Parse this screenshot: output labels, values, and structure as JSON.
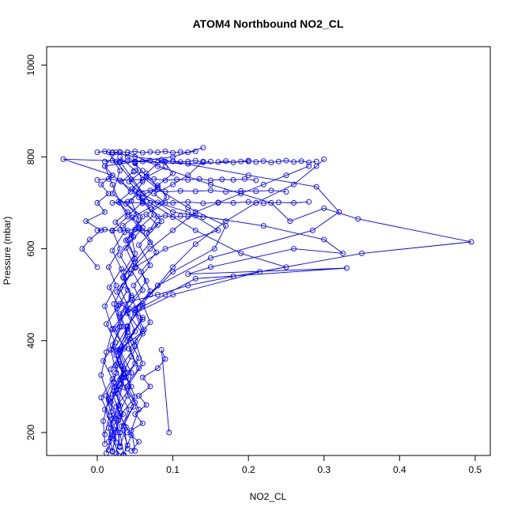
{
  "chart_data": {
    "type": "line",
    "title": "ATOM4 Northbound NO2_CL",
    "xlabel": "NO2_CL",
    "ylabel": "Pressure (mbar)",
    "xlim": [
      -0.067,
      0.52
    ],
    "ylim": [
      1040,
      150
    ],
    "y_reversed": true,
    "x_ticks": [
      0.0,
      0.1,
      0.2,
      0.3,
      0.4,
      0.5
    ],
    "x_tick_labels": [
      "0.0",
      "0.1",
      "0.2",
      "0.3",
      "0.4",
      "0.5"
    ],
    "y_ticks": [
      200,
      400,
      600,
      800,
      1000
    ],
    "y_tick_labels": [
      "200",
      "400",
      "600",
      "800",
      "1000"
    ],
    "grid": false,
    "marker": "open-circle",
    "color": "#0000ff",
    "series": [
      {
        "profile": 1,
        "x": [
          0.012,
          0.018,
          0.025,
          0.015,
          0.022,
          0.028,
          0.02,
          0.032,
          0.026,
          0.04,
          0.035,
          0.05,
          0.045,
          0.06,
          0.02,
          0.03,
          0.015
        ],
        "y": [
          155,
          190,
          230,
          270,
          310,
          350,
          390,
          430,
          470,
          510,
          550,
          590,
          630,
          670,
          720,
          770,
          810
        ]
      },
      {
        "profile": 2,
        "x": [
          0.035,
          0.03,
          0.042,
          0.025,
          0.05,
          0.04,
          0.06,
          0.03,
          0.08,
          0.12,
          0.18,
          0.25,
          0.19,
          0.13,
          0.07,
          0.03
        ],
        "y": [
          150,
          200,
          250,
          300,
          350,
          400,
          450,
          480,
          500,
          520,
          540,
          560,
          590,
          640,
          700,
          790
        ]
      },
      {
        "profile": 3,
        "x": [
          0.02,
          0.015,
          0.028,
          0.035,
          0.022,
          0.04,
          0.055,
          0.09,
          0.13,
          0.33,
          0.12,
          0.15,
          0.26,
          0.325,
          0.3,
          0.22,
          0.1,
          0.06,
          0.025
        ],
        "y": [
          160,
          210,
          260,
          320,
          380,
          430,
          470,
          500,
          535,
          558,
          545,
          560,
          600,
          590,
          620,
          650,
          680,
          720,
          790
        ]
      },
      {
        "profile": 4,
        "x": [
          0.03,
          0.025,
          0.04,
          0.045,
          0.03,
          0.06,
          0.05,
          0.1,
          0.215,
          0.35,
          0.495,
          0.345,
          0.3,
          0.255,
          0.23,
          0.15,
          0.08,
          0.04
        ],
        "y": [
          170,
          230,
          280,
          330,
          380,
          420,
          460,
          500,
          550,
          590,
          615,
          665,
          688,
          660,
          700,
          740,
          780,
          810
        ]
      },
      {
        "profile": 5,
        "x": [
          0.025,
          0.03,
          0.018,
          0.022,
          0.035,
          0.028,
          0.04,
          0.05,
          0.08,
          0.15,
          0.285,
          0.32,
          0.29,
          0.2,
          0.1,
          0.05,
          0.02
        ],
        "y": [
          155,
          200,
          245,
          290,
          335,
          380,
          425,
          470,
          520,
          580,
          640,
          680,
          735,
          760,
          790,
          800,
          810
        ]
      },
      {
        "profile": 6,
        "x": [
          0.04,
          0.035,
          0.05,
          0.03,
          0.045,
          0.06,
          0.04,
          0.07,
          0.1,
          0.155,
          0.17,
          0.12,
          0.08,
          0.05,
          0.03
        ],
        "y": [
          165,
          215,
          265,
          315,
          365,
          415,
          460,
          500,
          550,
          600,
          650,
          690,
          730,
          770,
          800
        ]
      },
      {
        "profile": 7,
        "x": [
          0.015,
          0.02,
          0.012,
          0.025,
          0.018,
          0.03,
          0.022,
          0.035,
          0.05,
          0.09,
          0.16,
          0.12,
          0.06,
          0.02,
          -0.045,
          0.05,
          0.12,
          0.2
        ],
        "y": [
          180,
          230,
          280,
          330,
          380,
          430,
          480,
          520,
          560,
          600,
          640,
          680,
          710,
          760,
          795,
          790,
          785,
          790
        ]
      },
      {
        "profile": 8,
        "x": [
          0.05,
          0.045,
          0.055,
          0.04,
          0.06,
          0.05,
          0.07,
          0.06,
          0.08,
          0.1,
          0.13,
          0.17,
          0.21,
          0.26,
          0.29,
          0.3
        ],
        "y": [
          160,
          205,
          250,
          300,
          350,
          400,
          440,
          480,
          520,
          560,
          610,
          660,
          700,
          740,
          780,
          795
        ]
      },
      {
        "profile": 9,
        "x": [
          0.01,
          0.008,
          0.015,
          0.005,
          0.012,
          0.02,
          0.01,
          0.025,
          0.015,
          0.03,
          0.02,
          0.04,
          0.03,
          0.02,
          0.01,
          0.05,
          0.1,
          0.14
        ],
        "y": [
          175,
          225,
          275,
          325,
          375,
          425,
          475,
          520,
          560,
          600,
          640,
          670,
          700,
          740,
          780,
          790,
          800,
          820
        ]
      },
      {
        "profile": 10,
        "x": [
          0.028,
          0.02,
          0.034,
          0.026,
          0.04,
          0.03,
          0.05,
          0.038,
          0.06,
          0.045,
          0.07,
          0.1,
          0.13,
          0.16,
          0.19,
          0.22,
          0.25,
          0.28
        ],
        "y": [
          150,
          195,
          240,
          285,
          330,
          375,
          420,
          465,
          510,
          555,
          600,
          640,
          680,
          700,
          720,
          740,
          760,
          780
        ]
      },
      {
        "profile": 11,
        "x": [
          0.02,
          0.025,
          0.03,
          0.02,
          0.035,
          0.025,
          0.04,
          0.03,
          0.045,
          0.035,
          0.05,
          0.04,
          0.055,
          0.045,
          0.06,
          0.05,
          0.04,
          0.03
        ],
        "y": [
          158,
          200,
          242,
          284,
          326,
          368,
          410,
          452,
          494,
          536,
          578,
          620,
          662,
          704,
          746,
          788,
          800,
          810
        ]
      },
      {
        "profile": 12,
        "x": [
          0.03,
          0.038,
          0.025,
          0.045,
          0.032,
          0.05,
          0.04,
          0.06,
          0.048,
          0.07,
          0.055,
          0.08,
          0.065,
          0.09,
          0.075,
          0.1,
          0.12,
          0.14
        ],
        "y": [
          168,
          212,
          256,
          300,
          344,
          388,
          432,
          476,
          520,
          564,
          608,
          652,
          675,
          700,
          720,
          740,
          760,
          790
        ]
      },
      {
        "profile": 13,
        "x": [
          0.015,
          0.022,
          0.01,
          0.028,
          0.018,
          0.035,
          0.024,
          0.042,
          0.03,
          0.05,
          0.038,
          0.06,
          0.046,
          0.07,
          0.055,
          0.08,
          0.065,
          0.09
        ],
        "y": [
          162,
          206,
          250,
          294,
          338,
          382,
          426,
          470,
          514,
          558,
          602,
          646,
          668,
          690,
          712,
          734,
          756,
          778
        ]
      },
      {
        "profile": 14,
        "x": [
          0.04,
          0.032,
          0.048,
          0.036,
          0.055,
          0.042,
          0.062,
          0.05,
          0.07,
          0.058,
          0.078,
          0.065,
          0.085,
          0.072,
          0.092,
          0.08,
          0.1,
          0.088
        ],
        "y": [
          172,
          214,
          256,
          298,
          340,
          382,
          424,
          466,
          508,
          550,
          592,
          634,
          660,
          686,
          712,
          738,
          764,
          790
        ]
      },
      {
        "profile": 15,
        "x": [
          0.022,
          0.028,
          0.018,
          0.032,
          0.024,
          0.036,
          0.02,
          0.04,
          0.026,
          0.044,
          0.03,
          0.048,
          0.034,
          0.052,
          0.038,
          0.056,
          0.042,
          0.06
        ],
        "y": [
          186,
          226,
          266,
          306,
          346,
          386,
          426,
          466,
          506,
          546,
          586,
          626,
          650,
          674,
          698,
          722,
          746,
          770
        ]
      },
      {
        "profile": 16,
        "x": [
          0.01,
          0.016,
          0.005,
          0.02,
          0.008,
          0.024,
          0.012,
          0.028,
          0.016,
          0.032,
          0.02,
          0.036,
          0.024,
          0.04,
          0.028,
          0.044,
          0.032,
          0.048
        ],
        "y": [
          196,
          236,
          276,
          316,
          356,
          396,
          436,
          476,
          516,
          556,
          596,
          636,
          658,
          680,
          702,
          724,
          746,
          768
        ]
      },
      {
        "profile": 17,
        "x": [
          0.035,
          0.045,
          0.03,
          0.05,
          0.038,
          0.055,
          0.042,
          0.06,
          0.046,
          0.065,
          0.05,
          0.07,
          0.055,
          0.075,
          0.06,
          0.08,
          0.065,
          0.085
        ],
        "y": [
          152,
          194,
          236,
          278,
          320,
          362,
          404,
          446,
          488,
          530,
          572,
          614,
          644,
          674,
          704,
          734,
          764,
          794
        ]
      },
      {
        "profile": 18,
        "x": [
          0.025,
          0.018,
          0.03,
          0.022,
          0.035,
          0.026,
          0.04,
          0.03,
          0.045,
          0.034,
          0.05,
          0.038,
          0.055,
          0.042,
          0.06,
          0.046,
          0.065,
          0.05
        ],
        "y": [
          178,
          218,
          258,
          298,
          338,
          378,
          418,
          458,
          498,
          538,
          578,
          618,
          646,
          674,
          702,
          730,
          758,
          786
        ]
      },
      {
        "profile": 19,
        "x": [
          0.045,
          0.055,
          0.04,
          0.06,
          0.05,
          0.065,
          0.055,
          0.07,
          0.06,
          0.08,
          0.09,
          0.085,
          0.095
        ],
        "y": [
          160,
          180,
          200,
          220,
          240,
          260,
          280,
          300,
          320,
          340,
          360,
          380,
          200
        ]
      },
      {
        "profile": 20,
        "x": [
          0.0,
          -0.02,
          -0.01,
          0.005,
          -0.015,
          0.01,
          0.0,
          0.015,
          0.005,
          0.02,
          0.01,
          0.025
        ],
        "y": [
          560,
          600,
          620,
          640,
          660,
          680,
          700,
          720,
          740,
          760,
          780,
          810
        ]
      },
      {
        "profile": 21,
        "x": [
          0.01,
          0.02,
          0.03,
          0.04,
          0.05,
          0.06,
          0.07,
          0.08,
          0.09,
          0.1,
          0.11,
          0.12,
          0.13,
          0.14,
          0.15
        ],
        "y": [
          790,
          792,
          788,
          791,
          789,
          790,
          792,
          788,
          790,
          791,
          789,
          790,
          792,
          788,
          790
        ]
      },
      {
        "profile": 22,
        "x": [
          0.16,
          0.17,
          0.18,
          0.19,
          0.2,
          0.21,
          0.22,
          0.23,
          0.24,
          0.25,
          0.26,
          0.27,
          0.28,
          0.29
        ],
        "y": [
          789,
          791,
          788,
          790,
          792,
          789,
          791,
          788,
          790,
          792,
          789,
          791,
          788,
          790
        ]
      },
      {
        "profile": 23,
        "x": [
          0.0,
          0.01,
          0.02,
          0.03,
          0.04,
          0.05,
          0.06,
          0.07,
          0.08,
          0.09,
          0.1,
          0.11,
          0.12,
          0.13
        ],
        "y": [
          810,
          812,
          809,
          811,
          810,
          812,
          809,
          811,
          810,
          812,
          809,
          811,
          810,
          812
        ]
      },
      {
        "profile": 24,
        "x": [
          0.0,
          0.01,
          0.02,
          0.03,
          0.04,
          0.05,
          0.06,
          0.07,
          0.08,
          0.09,
          0.1,
          0.11,
          0.12,
          0.13,
          0.14
        ],
        "y": [
          640,
          642,
          639,
          641,
          640,
          642,
          639,
          641,
          670,
          672,
          669,
          671,
          670,
          672,
          669
        ]
      },
      {
        "profile": 25,
        "x": [
          0.0,
          0.015,
          0.03,
          0.045,
          0.06,
          0.075,
          0.09,
          0.105,
          0.12,
          0.135,
          0.15,
          0.165,
          0.18,
          0.195,
          0.21
        ],
        "y": [
          750,
          752,
          749,
          751,
          750,
          752,
          749,
          751,
          750,
          752,
          749,
          751,
          750,
          752,
          749
        ]
      },
      {
        "profile": 26,
        "x": [
          0.05,
          0.07,
          0.09,
          0.11,
          0.13,
          0.15,
          0.17,
          0.19,
          0.21,
          0.23,
          0.25
        ],
        "y": [
          725,
          727,
          724,
          726,
          725,
          727,
          724,
          726,
          725,
          727,
          724
        ]
      },
      {
        "profile": 27,
        "x": [
          0.02,
          0.04,
          0.06,
          0.08,
          0.1,
          0.12,
          0.14,
          0.16,
          0.18,
          0.2,
          0.22,
          0.24,
          0.26,
          0.28
        ],
        "y": [
          700,
          702,
          699,
          701,
          700,
          702,
          699,
          701,
          700,
          702,
          699,
          701,
          700,
          702
        ]
      }
    ]
  }
}
